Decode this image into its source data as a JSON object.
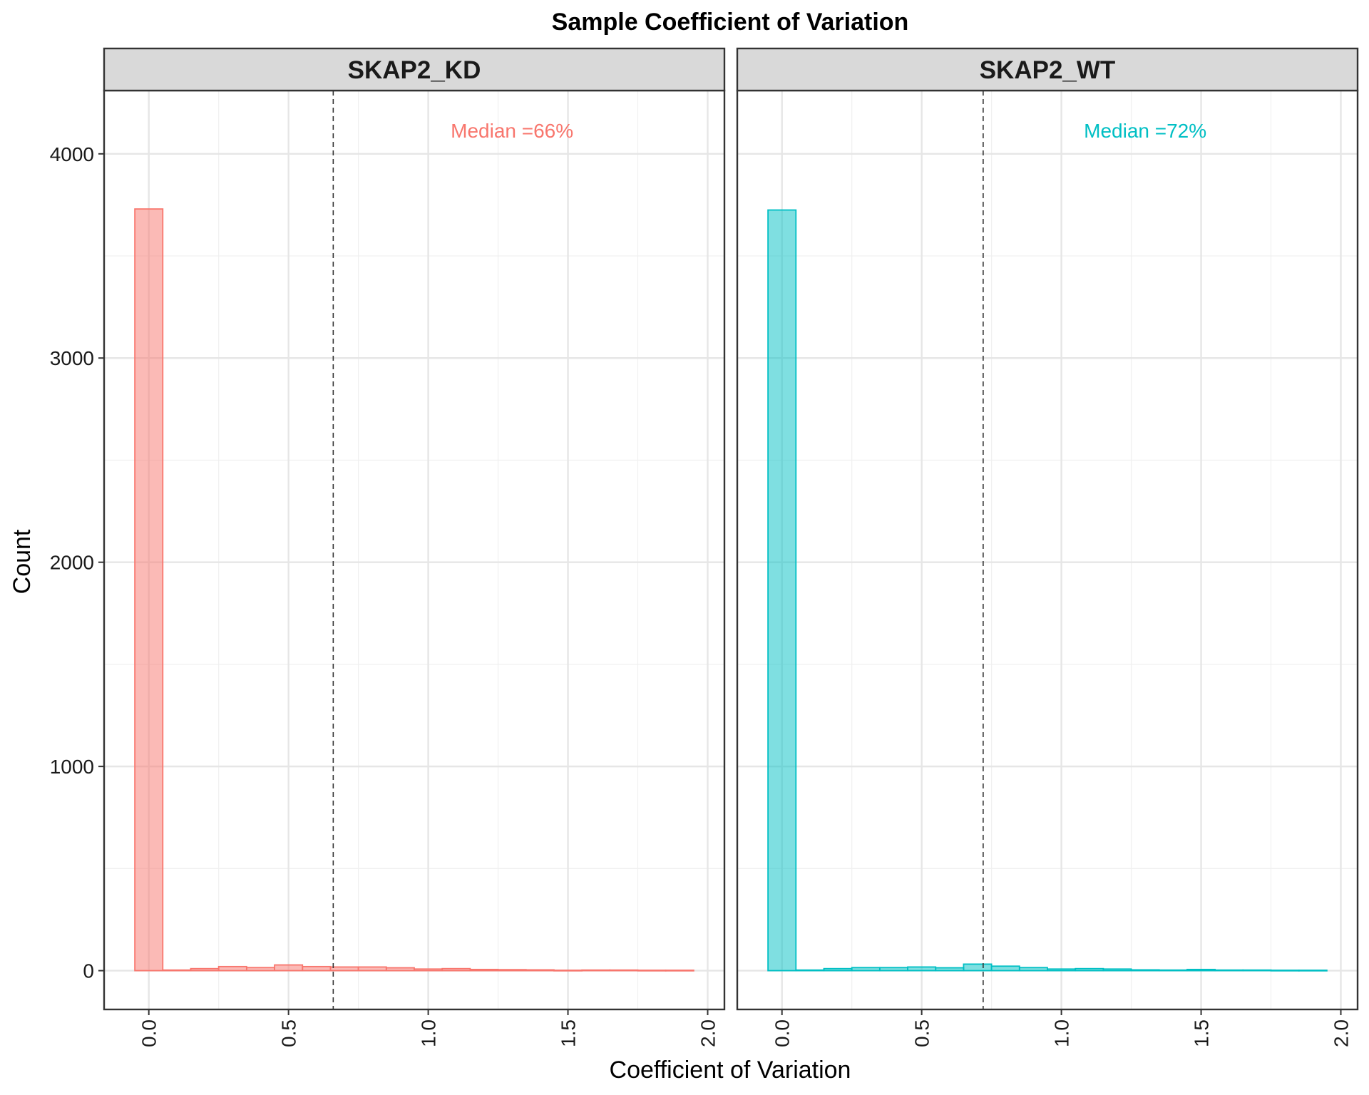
{
  "chart_data": {
    "type": "bar",
    "title": "Sample Coefficient of Variation",
    "xlabel": "Coefficient of Variation",
    "ylabel": "Count",
    "xlim": [
      -0.16,
      2.06
    ],
    "ylim": [
      -190,
      4310
    ],
    "x_ticks": [
      "0.0",
      "0.5",
      "1.0",
      "1.5",
      "2.0"
    ],
    "y_ticks": [
      "0",
      "1000",
      "2000",
      "3000",
      "4000"
    ],
    "grid": true,
    "bin_width": 0.1,
    "bin_centers": [
      0.0,
      0.1,
      0.2,
      0.3,
      0.4,
      0.5,
      0.6,
      0.7,
      0.8,
      0.9,
      1.0,
      1.1,
      1.2,
      1.3,
      1.4,
      1.5,
      1.6,
      1.7,
      1.8,
      1.9
    ],
    "series": [
      {
        "name": "SKAP2_KD",
        "color": "#F8766D",
        "values": [
          3730,
          3,
          10,
          20,
          15,
          28,
          20,
          18,
          18,
          14,
          8,
          10,
          6,
          5,
          4,
          2,
          3,
          3,
          2,
          2
        ],
        "median_value": 0.66,
        "median_label": "Median =66%"
      },
      {
        "name": "SKAP2_WT",
        "color": "#00BFC4",
        "values": [
          3725,
          3,
          10,
          15,
          15,
          18,
          14,
          32,
          22,
          15,
          8,
          10,
          8,
          4,
          3,
          6,
          3,
          3,
          2,
          2
        ],
        "median_value": 0.72,
        "median_label": "Median =72%"
      }
    ]
  }
}
